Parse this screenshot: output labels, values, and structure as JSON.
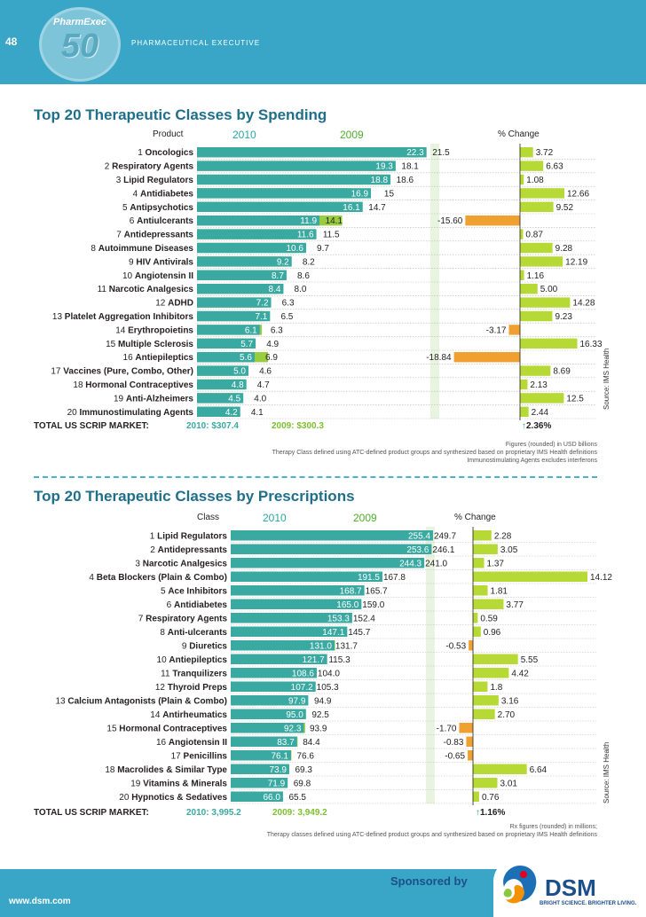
{
  "header": {
    "page_number": "48",
    "brand": "PharmExec",
    "brand_number": "50",
    "publication": "PHARMACEUTICAL EXECUTIVE"
  },
  "colors": {
    "bar_2010": "#3aa9a2",
    "bar_2009": "#9acc3f",
    "pct_positive": "#b6d935",
    "pct_negative": "#f0a030",
    "header_bg": "#3aa6c7",
    "title": "#1f6f8b"
  },
  "chart_data": [
    {
      "type": "bar",
      "title": "Top 20 Therapeutic Classes by Spending",
      "label_header": "Product",
      "col_2010": "2010",
      "col_2009": "2009",
      "col_change": "% Change",
      "categories": [
        "1 Oncologics",
        "2 Respiratory Agents",
        "3 Lipid Regulators",
        "4 Antidiabetes",
        "5 Antipsychotics",
        "6 Antiulcerants",
        "7 Antidepressants",
        "8 Autoimmune Diseases",
        "9 HIV Antivirals",
        "10 Angiotensin II",
        "11 Narcotic Analgesics",
        "12 ADHD",
        "13 Platelet Aggregation Inhibitors",
        "14 Erythropoietins",
        "15 Multiple Sclerosis",
        "16 Antiepileptics",
        "17 Vaccines (Pure, Combo, Other)",
        "18 Hormonal Contraceptives",
        "19 Anti-Alzheimers",
        "20 Immunostimulating Agents"
      ],
      "ranks": [
        "1",
        "2",
        "3",
        "4",
        "5",
        "6",
        "7",
        "8",
        "9",
        "10",
        "11",
        "12",
        "13",
        "14",
        "15",
        "16",
        "17",
        "18",
        "19",
        "20"
      ],
      "names": [
        "Oncologics",
        "Respiratory Agents",
        "Lipid Regulators",
        "Antidiabetes",
        "Antipsychotics",
        "Antiulcerants",
        "Antidepressants",
        "Autoimmune Diseases",
        "HIV Antivirals",
        "Angiotensin II",
        "Narcotic Analgesics",
        "ADHD",
        "Platelet Aggregation Inhibitors",
        "Erythropoietins",
        "Multiple Sclerosis",
        "Antiepileptics",
        "Vaccines (Pure, Combo, Other)",
        "Hormonal Contraceptives",
        "Anti-Alzheimers",
        "Immunostimulating Agents"
      ],
      "series": [
        {
          "name": "2010",
          "values": [
            22.3,
            19.3,
            18.8,
            16.9,
            16.1,
            11.9,
            11.6,
            10.6,
            9.2,
            8.7,
            8.4,
            7.2,
            7.1,
            6.1,
            5.7,
            5.6,
            5.0,
            4.8,
            4.5,
            4.2
          ],
          "labels": [
            "22.3",
            "19.3",
            "18.8",
            "16.9",
            "16.1",
            "11.9",
            "11.6",
            "10.6",
            "9.2",
            "8.7",
            "8.4",
            "7.2",
            "7.1",
            "6.1",
            "5.7",
            "5.6",
            "5.0",
            "4.8",
            "4.5",
            "4.2"
          ]
        },
        {
          "name": "2009",
          "values": [
            21.5,
            18.1,
            18.6,
            15,
            14.7,
            14.1,
            11.5,
            9.7,
            8.2,
            8.6,
            8.0,
            6.3,
            6.5,
            6.3,
            4.9,
            6.9,
            4.6,
            4.7,
            4.0,
            4.1
          ],
          "labels": [
            "21.5",
            "18.1",
            "18.6",
            "15",
            "14.7",
            "14.1",
            "11.5",
            "9.7",
            "8.2",
            "8.6",
            "8.0",
            "6.3",
            "6.5",
            "6.3",
            "4.9",
            "6.9",
            "4.6",
            "4.7",
            "4.0",
            "4.1"
          ]
        }
      ],
      "pct_change": [
        3.72,
        6.63,
        1.08,
        12.66,
        9.52,
        -15.6,
        0.87,
        9.28,
        12.19,
        1.16,
        5.0,
        14.28,
        9.23,
        -3.17,
        16.33,
        -18.84,
        8.69,
        2.13,
        12.5,
        2.44
      ],
      "pct_change_labels": [
        "3.72",
        "6.63",
        "1.08",
        "12.66",
        "9.52",
        "-15.60",
        "0.87",
        "9.28",
        "12.19",
        "1.16",
        "5.00",
        "14.28",
        "9.23",
        "-3.17",
        "16.33",
        "-18.84",
        "8.69",
        "2.13",
        "12.5",
        "2.44"
      ],
      "value_max": 25,
      "pct_range": [
        -20,
        20
      ],
      "total_label": "TOTAL US SCRIP MARKET:",
      "total_2010": "2010: $307.4",
      "total_2009": "2009: $300.3",
      "total_change": "2.36%",
      "notes": [
        "Figures (rounded) in USD billions",
        "Therapy Class defined using ATC-defined product groups and synthesized based on proprietary IMS Health definitions",
        "Immunostimulating Agents excludes interferons"
      ],
      "source": "Source: IMS Health"
    },
    {
      "type": "bar",
      "title": "Top 20 Therapeutic Classes by Prescriptions",
      "label_header": "Class",
      "col_2010": "2010",
      "col_2009": "2009",
      "col_change": "% Change",
      "categories": [
        "1 Lipid Regulators",
        "2 Antidepressants",
        "3 Narcotic Analgesics",
        "4 Beta Blockers (Plain & Combo)",
        "5 Ace Inhibitors",
        "6 Antidiabetes",
        "7 Respiratory Agents",
        "8 Anti-ulcerants",
        "9 Diuretics",
        "10 Antiepileptics",
        "11 Tranquilizers",
        "12 Thyroid Preps",
        "13 Calcium Antagonists (Plain & Combo)",
        "14 Antirheumatics",
        "15 Hormonal Contraceptives",
        "16 Angiotensin II",
        "17 Penicillins",
        "18 Macrolides & Similar Type",
        "19 Vitamins & Minerals",
        "20 Hypnotics & Sedatives"
      ],
      "ranks": [
        "1",
        "2",
        "3",
        "4",
        "5",
        "6",
        "7",
        "8",
        "9",
        "10",
        "11",
        "12",
        "13",
        "14",
        "15",
        "16",
        "17",
        "18",
        "19",
        "20"
      ],
      "names": [
        "Lipid Regulators",
        "Antidepressants",
        "Narcotic Analgesics",
        "Beta Blockers (Plain & Combo)",
        "Ace Inhibitors",
        "Antidiabetes",
        "Respiratory Agents",
        "Anti-ulcerants",
        "Diuretics",
        "Antiepileptics",
        "Tranquilizers",
        "Thyroid Preps",
        "Calcium Antagonists (Plain & Combo)",
        "Antirheumatics",
        "Hormonal Contraceptives",
        "Angiotensin II",
        "Penicillins",
        "Macrolides & Similar Type",
        "Vitamins & Minerals",
        "Hypnotics & Sedatives"
      ],
      "series": [
        {
          "name": "2010",
          "values": [
            255.4,
            253.6,
            244.3,
            191.5,
            168.7,
            165.0,
            153.3,
            147.1,
            131.0,
            121.7,
            108.6,
            107.2,
            97.9,
            95.0,
            92.3,
            83.7,
            76.1,
            73.9,
            71.9,
            66.0
          ],
          "labels": [
            "255.4",
            "253.6",
            "244.3",
            "191.5",
            "168.7",
            "165.0",
            "153.3",
            "147.1",
            "131.0",
            "121.7",
            "108.6",
            "107.2",
            "97.9",
            "95.0",
            "92.3",
            "83.7",
            "76.1",
            "73.9",
            "71.9",
            "66.0"
          ]
        },
        {
          "name": "2009",
          "values": [
            249.7,
            246.1,
            241.0,
            167.8,
            165.7,
            159.0,
            152.4,
            145.7,
            131.7,
            115.3,
            104.0,
            105.3,
            94.9,
            92.5,
            93.9,
            84.4,
            76.6,
            69.3,
            69.8,
            65.5
          ],
          "labels": [
            "249.7",
            "246.1",
            "241.0",
            "167.8",
            "165.7",
            "159.0",
            "152.4",
            "145.7",
            "131.7",
            "115.3",
            "104.0",
            "105.3",
            "94.9",
            "92.5",
            "93.9",
            "84.4",
            "76.6",
            "69.3",
            "69.8",
            "65.5"
          ]
        }
      ],
      "pct_change": [
        2.28,
        3.05,
        1.37,
        14.12,
        1.81,
        3.77,
        0.59,
        0.96,
        -0.53,
        5.55,
        4.42,
        1.8,
        3.16,
        2.7,
        -1.7,
        -0.83,
        -0.65,
        6.64,
        3.01,
        0.76
      ],
      "pct_change_labels": [
        "2.28",
        "3.05",
        "1.37",
        "14.12",
        "1.81",
        "3.77",
        "0.59",
        "0.96",
        "-0.53",
        "5.55",
        "4.42",
        "1.8",
        "3.16",
        "2.70",
        "-1.70",
        "-0.83",
        "-0.65",
        "6.64",
        "3.01",
        "0.76"
      ],
      "value_max": 280,
      "pct_range": [
        -2,
        15
      ],
      "total_label": "TOTAL US SCRIP MARKET:",
      "total_2010": "2010: 3,995.2",
      "total_2009": "2009: 3,949.2",
      "total_change": "1.16%",
      "notes": [
        "Rx figures (rounded) in millions;",
        "Therapy classes defined using ATC-defined product groups and synthesized based on proprietary IMS Health definitions"
      ],
      "source": "Source: IMS Health"
    }
  ],
  "footer": {
    "url": "www.dsm.com",
    "sponsor": "Sponsored by",
    "company": "DSM",
    "tagline": "BRIGHT SCIENCE. BRIGHTER LIVING."
  }
}
